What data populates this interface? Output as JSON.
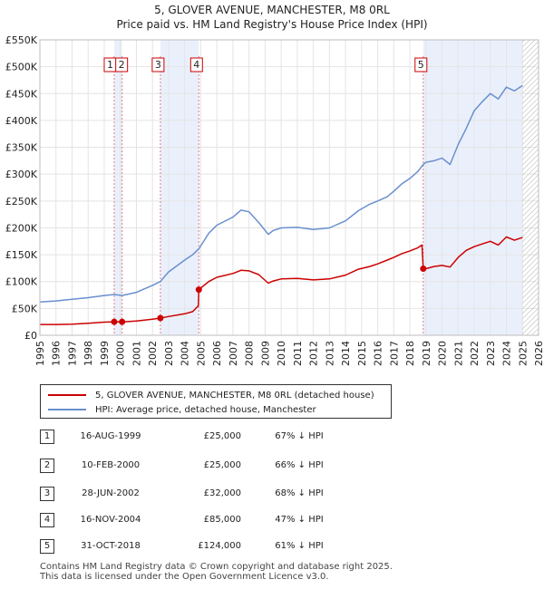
{
  "title_line1": "5, GLOVER AVENUE, MANCHESTER, M8 0RL",
  "title_line2": "Price paid vs. HM Land Registry's House Price Index (HPI)",
  "chart_data": {
    "type": "line",
    "title": "5, GLOVER AVENUE, MANCHESTER, M8 0RL — Price paid vs. HM Land Registry's House Price Index (HPI)",
    "xlabel": "",
    "ylabel": "",
    "xlim": [
      1995,
      2026
    ],
    "ylim": [
      0,
      550000
    ],
    "y_ticks": [
      0,
      50000,
      100000,
      150000,
      200000,
      250000,
      300000,
      350000,
      400000,
      450000,
      500000,
      550000
    ],
    "y_tick_labels": [
      "£0",
      "£50K",
      "£100K",
      "£150K",
      "£200K",
      "£250K",
      "£300K",
      "£350K",
      "£400K",
      "£450K",
      "£500K",
      "£550K"
    ],
    "x_ticks": [
      1995,
      1996,
      1997,
      1998,
      1999,
      2000,
      2001,
      2002,
      2003,
      2004,
      2005,
      2006,
      2007,
      2008,
      2009,
      2010,
      2011,
      2012,
      2013,
      2014,
      2015,
      2016,
      2017,
      2018,
      2019,
      2020,
      2021,
      2022,
      2023,
      2024,
      2025,
      2026
    ],
    "grid": true,
    "future_hatch_from": 2025.0,
    "series": [
      {
        "name": "5, GLOVER AVENUE, MANCHESTER, M8 0RL (detached house)",
        "color": "#cc0000",
        "x": [
          1995.0,
          1996.0,
          1997.0,
          1998.0,
          1999.0,
          1999.62,
          2000.11,
          2001.0,
          2002.0,
          2002.49,
          2003.0,
          2004.0,
          2004.5,
          2004.85,
          2004.88,
          2005.5,
          2006.0,
          2007.0,
          2007.5,
          2008.0,
          2008.6,
          2009.2,
          2009.5,
          2010.0,
          2011.0,
          2012.0,
          2013.0,
          2014.0,
          2014.8,
          2015.5,
          2016.0,
          2016.6,
          2017.0,
          2017.5,
          2018.0,
          2018.5,
          2018.75,
          2018.83,
          2019.0,
          2019.5,
          2020.0,
          2020.5,
          2021.0,
          2021.5,
          2022.0,
          2022.5,
          2023.0,
          2023.5,
          2024.0,
          2024.5,
          2025.0
        ],
        "values": [
          20000,
          20000,
          20500,
          22500,
          24500,
          25000,
          25000,
          26500,
          30000,
          32000,
          35000,
          40000,
          44000,
          55000,
          85000,
          100000,
          108000,
          115000,
          121000,
          120000,
          113000,
          97000,
          101000,
          105000,
          106000,
          103000,
          105000,
          112000,
          123000,
          128000,
          133000,
          140000,
          145000,
          152000,
          157000,
          163000,
          168000,
          124000,
          124000,
          128000,
          130000,
          127000,
          145000,
          158000,
          165000,
          170000,
          175000,
          168000,
          183000,
          177000,
          182000
        ]
      },
      {
        "name": "HPI: Average price, detached house, Manchester",
        "color": "#6a8fcf",
        "x": [
          1995.0,
          1996.0,
          1997.0,
          1998.0,
          1999.0,
          1999.62,
          2000.11,
          2001.0,
          2002.0,
          2002.49,
          2003.0,
          2004.0,
          2004.5,
          2004.88,
          2005.5,
          2006.0,
          2007.0,
          2007.5,
          2008.0,
          2008.6,
          2009.2,
          2009.5,
          2010.0,
          2011.0,
          2012.0,
          2013.0,
          2014.0,
          2014.8,
          2015.5,
          2016.0,
          2016.6,
          2017.0,
          2017.5,
          2018.0,
          2018.5,
          2018.83,
          2019.0,
          2019.5,
          2020.0,
          2020.5,
          2021.0,
          2021.5,
          2022.0,
          2022.5,
          2023.0,
          2023.5,
          2024.0,
          2024.5,
          2025.0
        ],
        "values": [
          62000,
          64000,
          67000,
          70000,
          74000,
          76000,
          74000,
          80000,
          93000,
          100000,
          118000,
          140000,
          150000,
          161000,
          190000,
          205000,
          220000,
          233000,
          230000,
          210000,
          188000,
          195000,
          200000,
          201000,
          197000,
          200000,
          213000,
          232000,
          244000,
          250000,
          258000,
          268000,
          282000,
          292000,
          305000,
          318000,
          322000,
          325000,
          330000,
          318000,
          355000,
          385000,
          418000,
          435000,
          450000,
          440000,
          462000,
          455000,
          465000
        ]
      }
    ],
    "sales": [
      {
        "label": "1",
        "x": 1999.62,
        "price": 25000
      },
      {
        "label": "2",
        "x": 2000.11,
        "price": 25000
      },
      {
        "label": "3",
        "x": 2002.49,
        "price": 32000
      },
      {
        "label": "4",
        "x": 2004.88,
        "price": 85000
      },
      {
        "label": "5",
        "x": 2018.83,
        "price": 124000
      }
    ],
    "shaded_ranges": [
      [
        1999.62,
        2000.11
      ],
      [
        2002.49,
        2004.88
      ],
      [
        2018.83,
        2025.0
      ]
    ]
  },
  "legend": {
    "property": "5, GLOVER AVENUE, MANCHESTER, M8 0RL (detached house)",
    "hpi": "HPI: Average price, detached house, Manchester"
  },
  "transactions": [
    {
      "num": "1",
      "date": "16-AUG-1999",
      "price": "£25,000",
      "hpi": "67% ↓ HPI"
    },
    {
      "num": "2",
      "date": "10-FEB-2000",
      "price": "£25,000",
      "hpi": "66% ↓ HPI"
    },
    {
      "num": "3",
      "date": "28-JUN-2002",
      "price": "£32,000",
      "hpi": "68% ↓ HPI"
    },
    {
      "num": "4",
      "date": "16-NOV-2004",
      "price": "£85,000",
      "hpi": "47% ↓ HPI"
    },
    {
      "num": "5",
      "date": "31-OCT-2018",
      "price": "£124,000",
      "hpi": "61% ↓ HPI"
    }
  ],
  "footer_line1": "Contains HM Land Registry data © Crown copyright and database right 2025.",
  "footer_line2": "This data is licensed under the Open Government Licence v3.0."
}
